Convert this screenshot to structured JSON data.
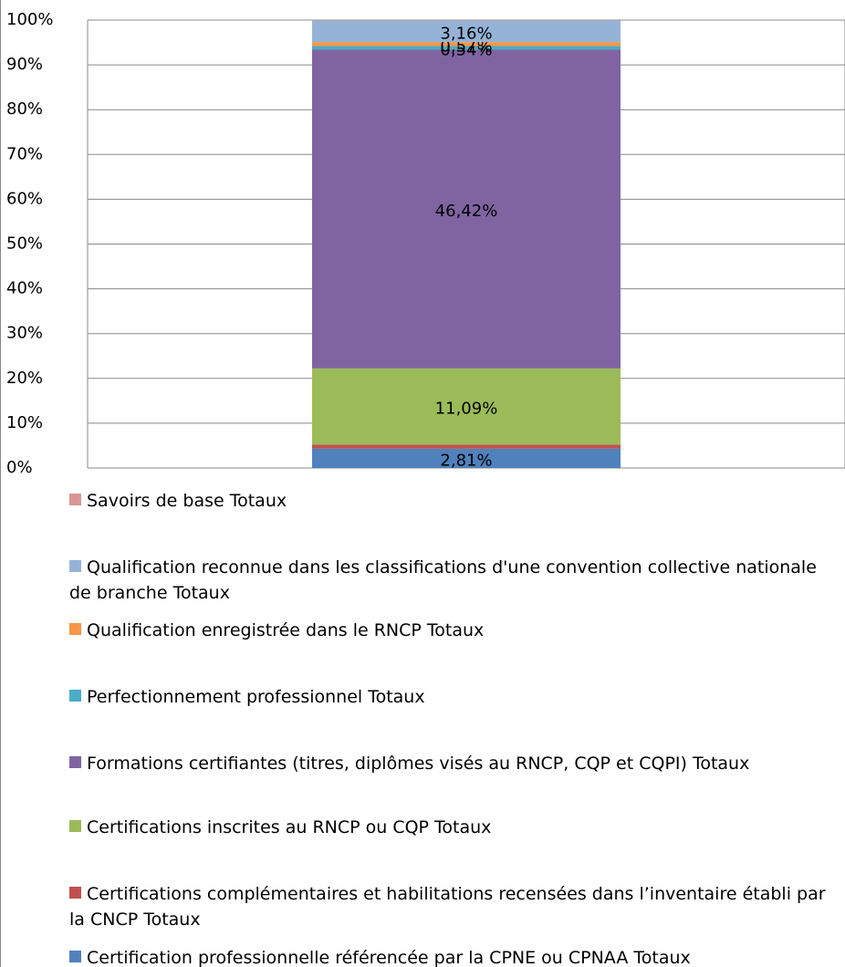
{
  "chart_data": {
    "type": "stacked_percent_bar",
    "categories": [
      null
    ],
    "series": [
      {
        "name": "Certification professionnelle référencée par la CPNE ou CPNAA Totaux",
        "color": "#4f81bd",
        "values": [
          2.81
        ],
        "value_labels": [
          "2,81%"
        ]
      },
      {
        "name": "Certifications complémentaires et habilitations recensées dans l’inventaire établi par la CNCP Totaux",
        "color": "#c0504d",
        "values": [
          0.6
        ],
        "value_labels": [
          null
        ]
      },
      {
        "name": "Certifications inscrites au RNCP ou CQP Totaux",
        "color": "#9bbb59",
        "values": [
          11.09
        ],
        "value_labels": [
          "11,09%"
        ]
      },
      {
        "name": "Formations certifiantes (titres, diplômes visés au RNCP, CQP et CQPI) Totaux",
        "color": "#8064a2",
        "values": [
          46.42
        ],
        "value_labels": [
          "46,42%"
        ]
      },
      {
        "name": "Perfectionnement professionnel Totaux",
        "color": "#4bacc6",
        "values": [
          0.54
        ],
        "value_labels": [
          "0,54%"
        ]
      },
      {
        "name": "Qualification enregistrée dans le RNCP Totaux",
        "color": "#f79646",
        "values": [
          0.57
        ],
        "value_labels": [
          "0,57%"
        ]
      },
      {
        "name": "Qualification reconnue dans les classifications d'une convention collective nationale de branche Totaux",
        "color": "#95b3d7",
        "values": [
          3.16
        ],
        "value_labels": [
          "3,16%"
        ]
      },
      {
        "name": "Savoirs de base Totaux",
        "color": "#d99694",
        "values": [
          0.05
        ],
        "value_labels": [
          null
        ]
      }
    ],
    "ylim": [
      0,
      100
    ],
    "yticks": [
      {
        "value": 0,
        "label": "0%"
      },
      {
        "value": 10,
        "label": "10%"
      },
      {
        "value": 20,
        "label": "20%"
      },
      {
        "value": 30,
        "label": "30%"
      },
      {
        "value": 40,
        "label": "40%"
      },
      {
        "value": 50,
        "label": "50%"
      },
      {
        "value": 60,
        "label": "60%"
      },
      {
        "value": 70,
        "label": "70%"
      },
      {
        "value": 80,
        "label": "80%"
      },
      {
        "value": 90,
        "label": "90%"
      },
      {
        "value": 100,
        "label": "100%"
      }
    ],
    "grid": true
  }
}
